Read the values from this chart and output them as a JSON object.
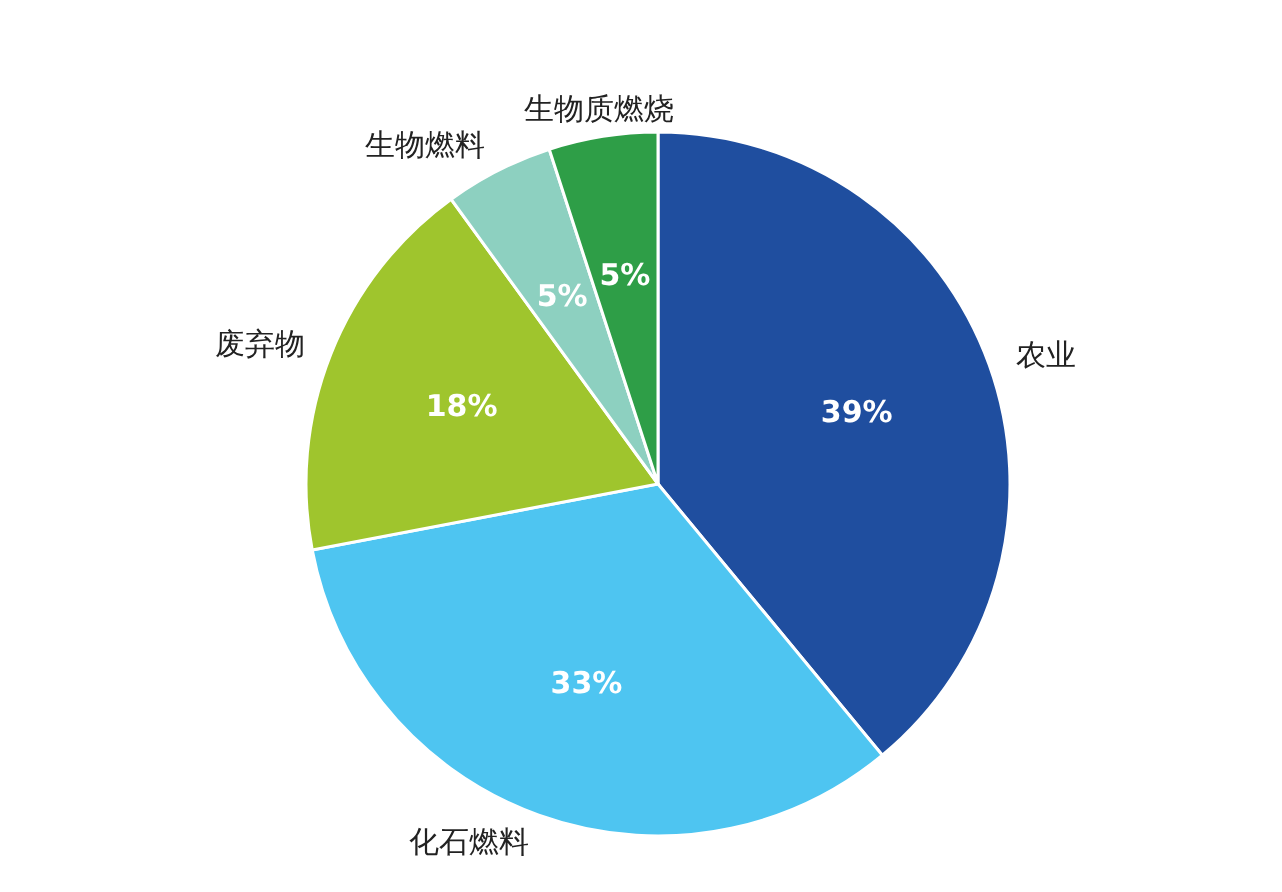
{
  "chart_data": {
    "type": "pie",
    "categories": [
      "农业",
      "化石燃料",
      "废弃物",
      "生物燃料",
      "生物质燃烧"
    ],
    "values": [
      39,
      33,
      18,
      5,
      5
    ],
    "colors": [
      "#1f4e9f",
      "#4ec5f1",
      "#9fc52d",
      "#8dd0c0",
      "#2e9e47"
    ],
    "value_labels": [
      "39%",
      "33%",
      "18%",
      "5%",
      "5%"
    ]
  }
}
